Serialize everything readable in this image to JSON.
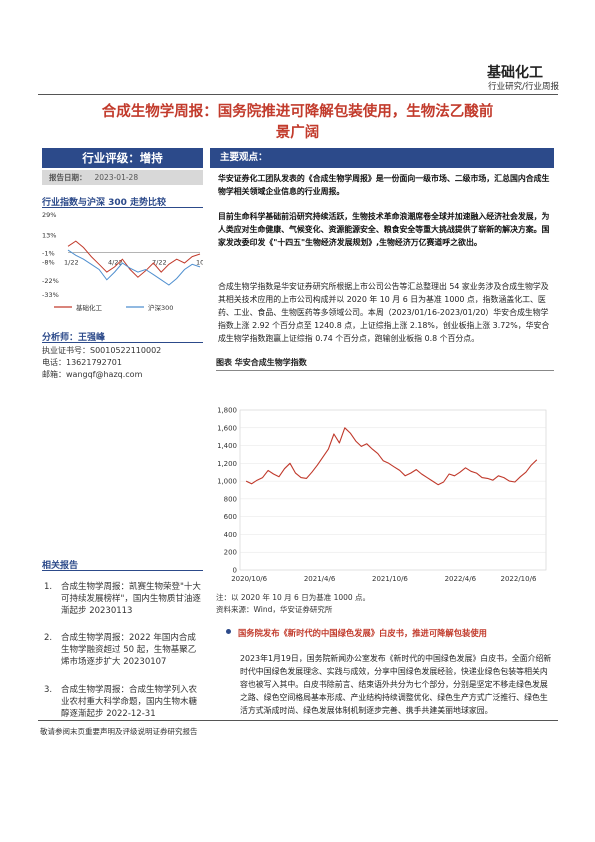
{
  "header": {
    "sector": "基础化工",
    "report_type": "行业研究/行业周报"
  },
  "title_lines": [
    "合成生物学周报：国务院推进可降解包装使用，生物法乙酸前",
    "景广阔"
  ],
  "rating": {
    "label": "行业评级：增持",
    "date_label": "报告日期：",
    "date": "2023-01-28"
  },
  "mini_chart_section": "行业指数与沪深 300 走势比较",
  "chart_data": [
    {
      "type": "line",
      "yticks": [
        "29%",
        "13%",
        "-1%",
        "-8%",
        "-22%",
        "-33%"
      ],
      "xticks": [
        "1/22",
        "4/22",
        "7/22",
        "10/22"
      ],
      "series": [
        {
          "name": "基础化工",
          "color": "#c23b2c",
          "values": [
            4,
            8,
            3,
            -4,
            -10,
            -16,
            -12,
            -6,
            -14,
            -20,
            -15,
            -9,
            -16,
            -10,
            -6,
            -9,
            -4,
            -2
          ]
        },
        {
          "name": "沪深300",
          "color": "#4f8fcf",
          "values": [
            1,
            -3,
            -6,
            -10,
            -14,
            -22,
            -16,
            -9,
            -13,
            -16,
            -14,
            -18,
            -22,
            -26,
            -21,
            -14,
            -10,
            -12
          ]
        }
      ]
    },
    {
      "type": "line",
      "title": "图表 华安合成生物学指数",
      "yticks": [
        0,
        200,
        400,
        600,
        800,
        1000,
        1200,
        1400,
        1600,
        1800
      ],
      "ylim": [
        0,
        1800
      ],
      "xticks": [
        "2020/10/6",
        "2021/4/6",
        "2021/10/6",
        "2022/4/6",
        "2022/10/6"
      ],
      "series": [
        {
          "name": "华安合成生物学指数",
          "color": "#c0392b",
          "values": [
            1000,
            970,
            1010,
            1040,
            1120,
            1080,
            1050,
            1140,
            1200,
            1090,
            1040,
            1030,
            1100,
            1180,
            1270,
            1360,
            1530,
            1430,
            1600,
            1540,
            1450,
            1390,
            1420,
            1360,
            1310,
            1230,
            1200,
            1160,
            1120,
            1060,
            1090,
            1130,
            1080,
            1040,
            1000,
            960,
            990,
            1080,
            1060,
            1100,
            1150,
            1110,
            1090,
            1040,
            1030,
            1010,
            1060,
            1040,
            1000,
            990,
            1050,
            1100,
            1180,
            1240
          ]
        }
      ]
    }
  ],
  "analyst": {
    "heading": "分析师：王强峰",
    "cert_label": "执业证书号：",
    "cert": "S0010522110002",
    "phone_label": "电话：",
    "phone": "13621792701",
    "email_label": "邮箱：",
    "email": "wangqf@hazq.com"
  },
  "related": {
    "heading": "相关报告",
    "items": [
      {
        "n": "1.",
        "text": "合成生物学周报：凯赛生物荣登\"十大可持续发展榜样\"，国内生物质甘油逐渐起步 20230113"
      },
      {
        "n": "2.",
        "text": "合成生物学周报：2022 年国内合成生物学融资超过 50 起，生物基聚乙烯市场逐步扩大 20230107"
      },
      {
        "n": "3.",
        "text": "合成生物学周报：合成生物学列入农业农村重大科学命题，国内生物木糖醇逐渐起步 2022-12-31"
      }
    ]
  },
  "main": {
    "heading": "主要观点：",
    "p1": "华安证券化工团队发表的《合成生物学周报》是一份面向一级市场、二级市场，汇总国内合成生物学相关领域企业信息的行业周报。",
    "p2": "目前生命科学基础前沿研究持续活跃，生物技术革命浪潮席卷全球并加速融入经济社会发展，为人类应对生命健康、气候变化、资源能源安全、粮食安全等重大挑战提供了崭新的解决方案。国家发改委印发《\"十四五\"生物经济发展规划》,生物经济万亿赛道呼之欲出。",
    "p3": "合成生物学指数是华安证券研究所根据上市公司公告等汇总整理出 54 家业务涉及合成生物学及其相关技术应用的上市公司构成并以 2020 年 10 月 6 日为基准 1000 点，指数涵盖化工、医药、工业、食品、生物医药等多领域公司。本周（2023/01/16-2023/01/20）华安合成生物学指数上涨 2.92 个百分点至 1240.8 点，上证综指上涨 2.18%，创业板指上涨 3.72%，华安合成生物学指数跑赢上证综指 0.74 个百分点，跑输创业板指 0.8 个百分点。",
    "note": "注：以 2020 年 10 月 6 日为基准 1000 点。",
    "source": "资料来源：Wind，华安证券研究所",
    "sec2_title": "国务院发布《新时代的中国绿色发展》白皮书，推进可降解包装使用",
    "p4": "2023年1月19日，国务院新闻办公室发布《新时代的中国绿色发展》白皮书，全面介绍新时代中国绿色发展理念、实践与成效，分享中国绿色发展经验，快递业绿色包装等相关内容也被写入其中。白皮书除前言、结束语外共分为七个部分，分别是坚定不移走绿色发展之路、绿色空间格局基本形成、产业结构持续调整优化、绿色生产方式广泛推行、绿色生活方式渐成时尚、绿色发展体制机制逐步完善、携手共建美丽地球家园。"
  },
  "footer": "敬请参阅末页重要声明及评级说明证券研究报告"
}
